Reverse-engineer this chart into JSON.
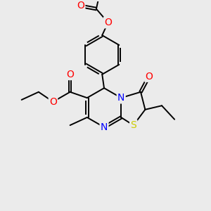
{
  "background_color": "#ebebeb",
  "bond_color": "#000000",
  "atom_colors": {
    "O": "#ff0000",
    "N": "#0000ff",
    "S": "#cccc00",
    "C": "#000000"
  },
  "lw": 1.4,
  "fs": 10,
  "scale": 2.8,
  "ox": 148,
  "oy": 148
}
